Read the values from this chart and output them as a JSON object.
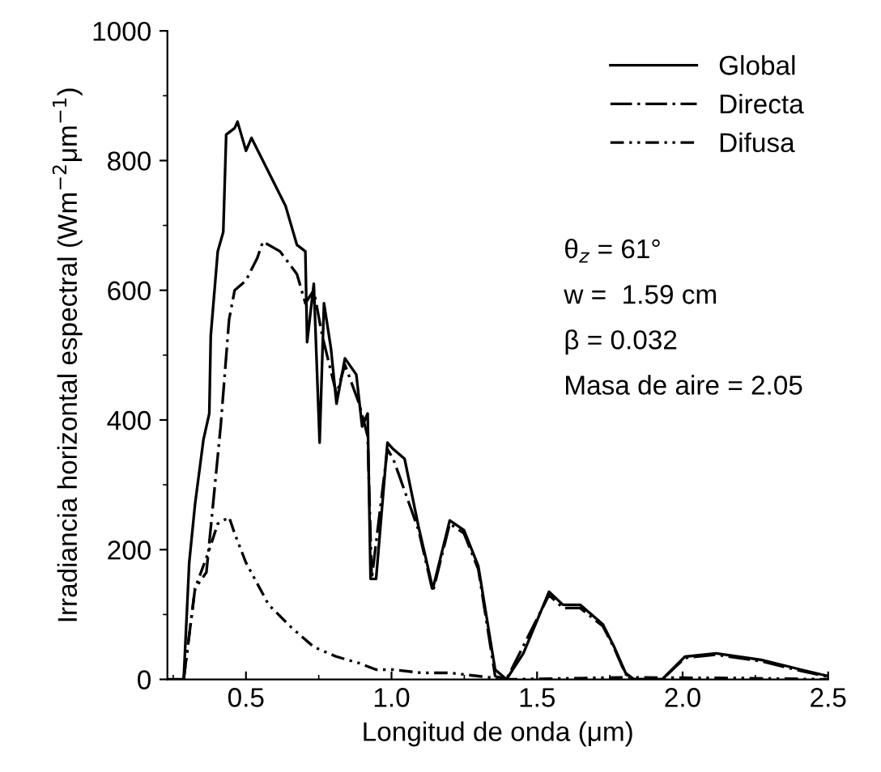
{
  "chart_data": {
    "type": "line",
    "xlabel": "Longitud de onda (μm)",
    "ylabel": "Irradiancia horizontal espectral (Wm$^{−2}$μm$^{−1}$)",
    "xlim": [
      0.23,
      2.5
    ],
    "ylim": [
      0,
      1000
    ],
    "xticks": [
      {
        "value": 0.5,
        "label": "0.5"
      },
      {
        "value": 1.0,
        "label": "1.0"
      },
      {
        "value": 1.5,
        "label": "1.5"
      },
      {
        "value": 2.0,
        "label": "2.0"
      },
      {
        "value": 2.5,
        "label": "2.5"
      }
    ],
    "yticks": [
      0,
      200,
      400,
      600,
      800,
      1000
    ],
    "grid": false,
    "legend": "top right",
    "annotations": [
      "θ$_{z}$ = 61°",
      "w =  1.59 cm",
      "β = 0.032",
      "Masa de aire = 2.05"
    ],
    "series": [
      {
        "name": "Global",
        "color": "#000000",
        "line_style": "solid",
        "x": [
          0.23,
          0.286,
          0.305,
          0.325,
          0.354,
          0.374,
          0.379,
          0.403,
          0.422,
          0.432,
          0.461,
          0.471,
          0.5,
          0.519,
          0.558,
          0.597,
          0.636,
          0.675,
          0.704,
          0.71,
          0.733,
          0.753,
          0.768,
          0.792,
          0.811,
          0.84,
          0.879,
          0.899,
          0.918,
          0.928,
          0.947,
          0.986,
          1.006,
          1.045,
          1.093,
          1.142,
          1.2,
          1.249,
          1.298,
          1.356,
          1.395,
          1.453,
          1.541,
          1.589,
          1.648,
          1.726,
          1.765,
          1.804,
          1.833,
          1.93,
          2.008,
          2.115,
          2.27,
          2.407,
          2.5
        ],
        "values": [
          0,
          0,
          180,
          270,
          370,
          410,
          530,
          660,
          690,
          840,
          850,
          860,
          815,
          835,
          800,
          765,
          730,
          670,
          660,
          520,
          610,
          365,
          580,
          510,
          425,
          495,
          470,
          390,
          410,
          155,
          155,
          365,
          355,
          340,
          235,
          140,
          245,
          230,
          175,
          15,
          0,
          40,
          135,
          115,
          115,
          85,
          50,
          10,
          0,
          0,
          35,
          40,
          30,
          15,
          5
        ]
      },
      {
        "name": "Directa",
        "color": "#000000",
        "line_style": "dashdot",
        "x": [
          0.286,
          0.325,
          0.364,
          0.413,
          0.442,
          0.461,
          0.5,
          0.539,
          0.558,
          0.617,
          0.675,
          0.704,
          0.733,
          0.762,
          0.811,
          0.84,
          0.889,
          0.918,
          0.932,
          0.986,
          1.006,
          1.093,
          1.142,
          1.2,
          1.249,
          1.298,
          1.356,
          1.395,
          1.541,
          1.589,
          1.648,
          1.726,
          1.765,
          1.804,
          1.833,
          1.93,
          2.008,
          2.115,
          2.27,
          2.407,
          2.5
        ],
        "values": [
          0,
          140,
          165,
          390,
          555,
          600,
          615,
          650,
          675,
          660,
          625,
          580,
          600,
          530,
          440,
          485,
          425,
          375,
          155,
          355,
          340,
          230,
          135,
          240,
          225,
          170,
          5,
          0,
          130,
          110,
          110,
          82,
          48,
          8,
          0,
          0,
          33,
          38,
          28,
          13,
          4
        ]
      },
      {
        "name": "Difusa",
        "color": "#000000",
        "line_style": "dashdotdot",
        "x": [
          0.286,
          0.325,
          0.374,
          0.403,
          0.442,
          0.461,
          0.5,
          0.578,
          0.656,
          0.733,
          0.811,
          0.889,
          0.947,
          1.006,
          1.103,
          1.2,
          1.298,
          1.395,
          1.8,
          2.2,
          2.5
        ],
        "values": [
          0,
          140,
          200,
          240,
          250,
          225,
          180,
          115,
          80,
          50,
          35,
          25,
          15,
          15,
          10,
          10,
          5,
          0,
          3,
          2,
          0
        ]
      }
    ]
  }
}
